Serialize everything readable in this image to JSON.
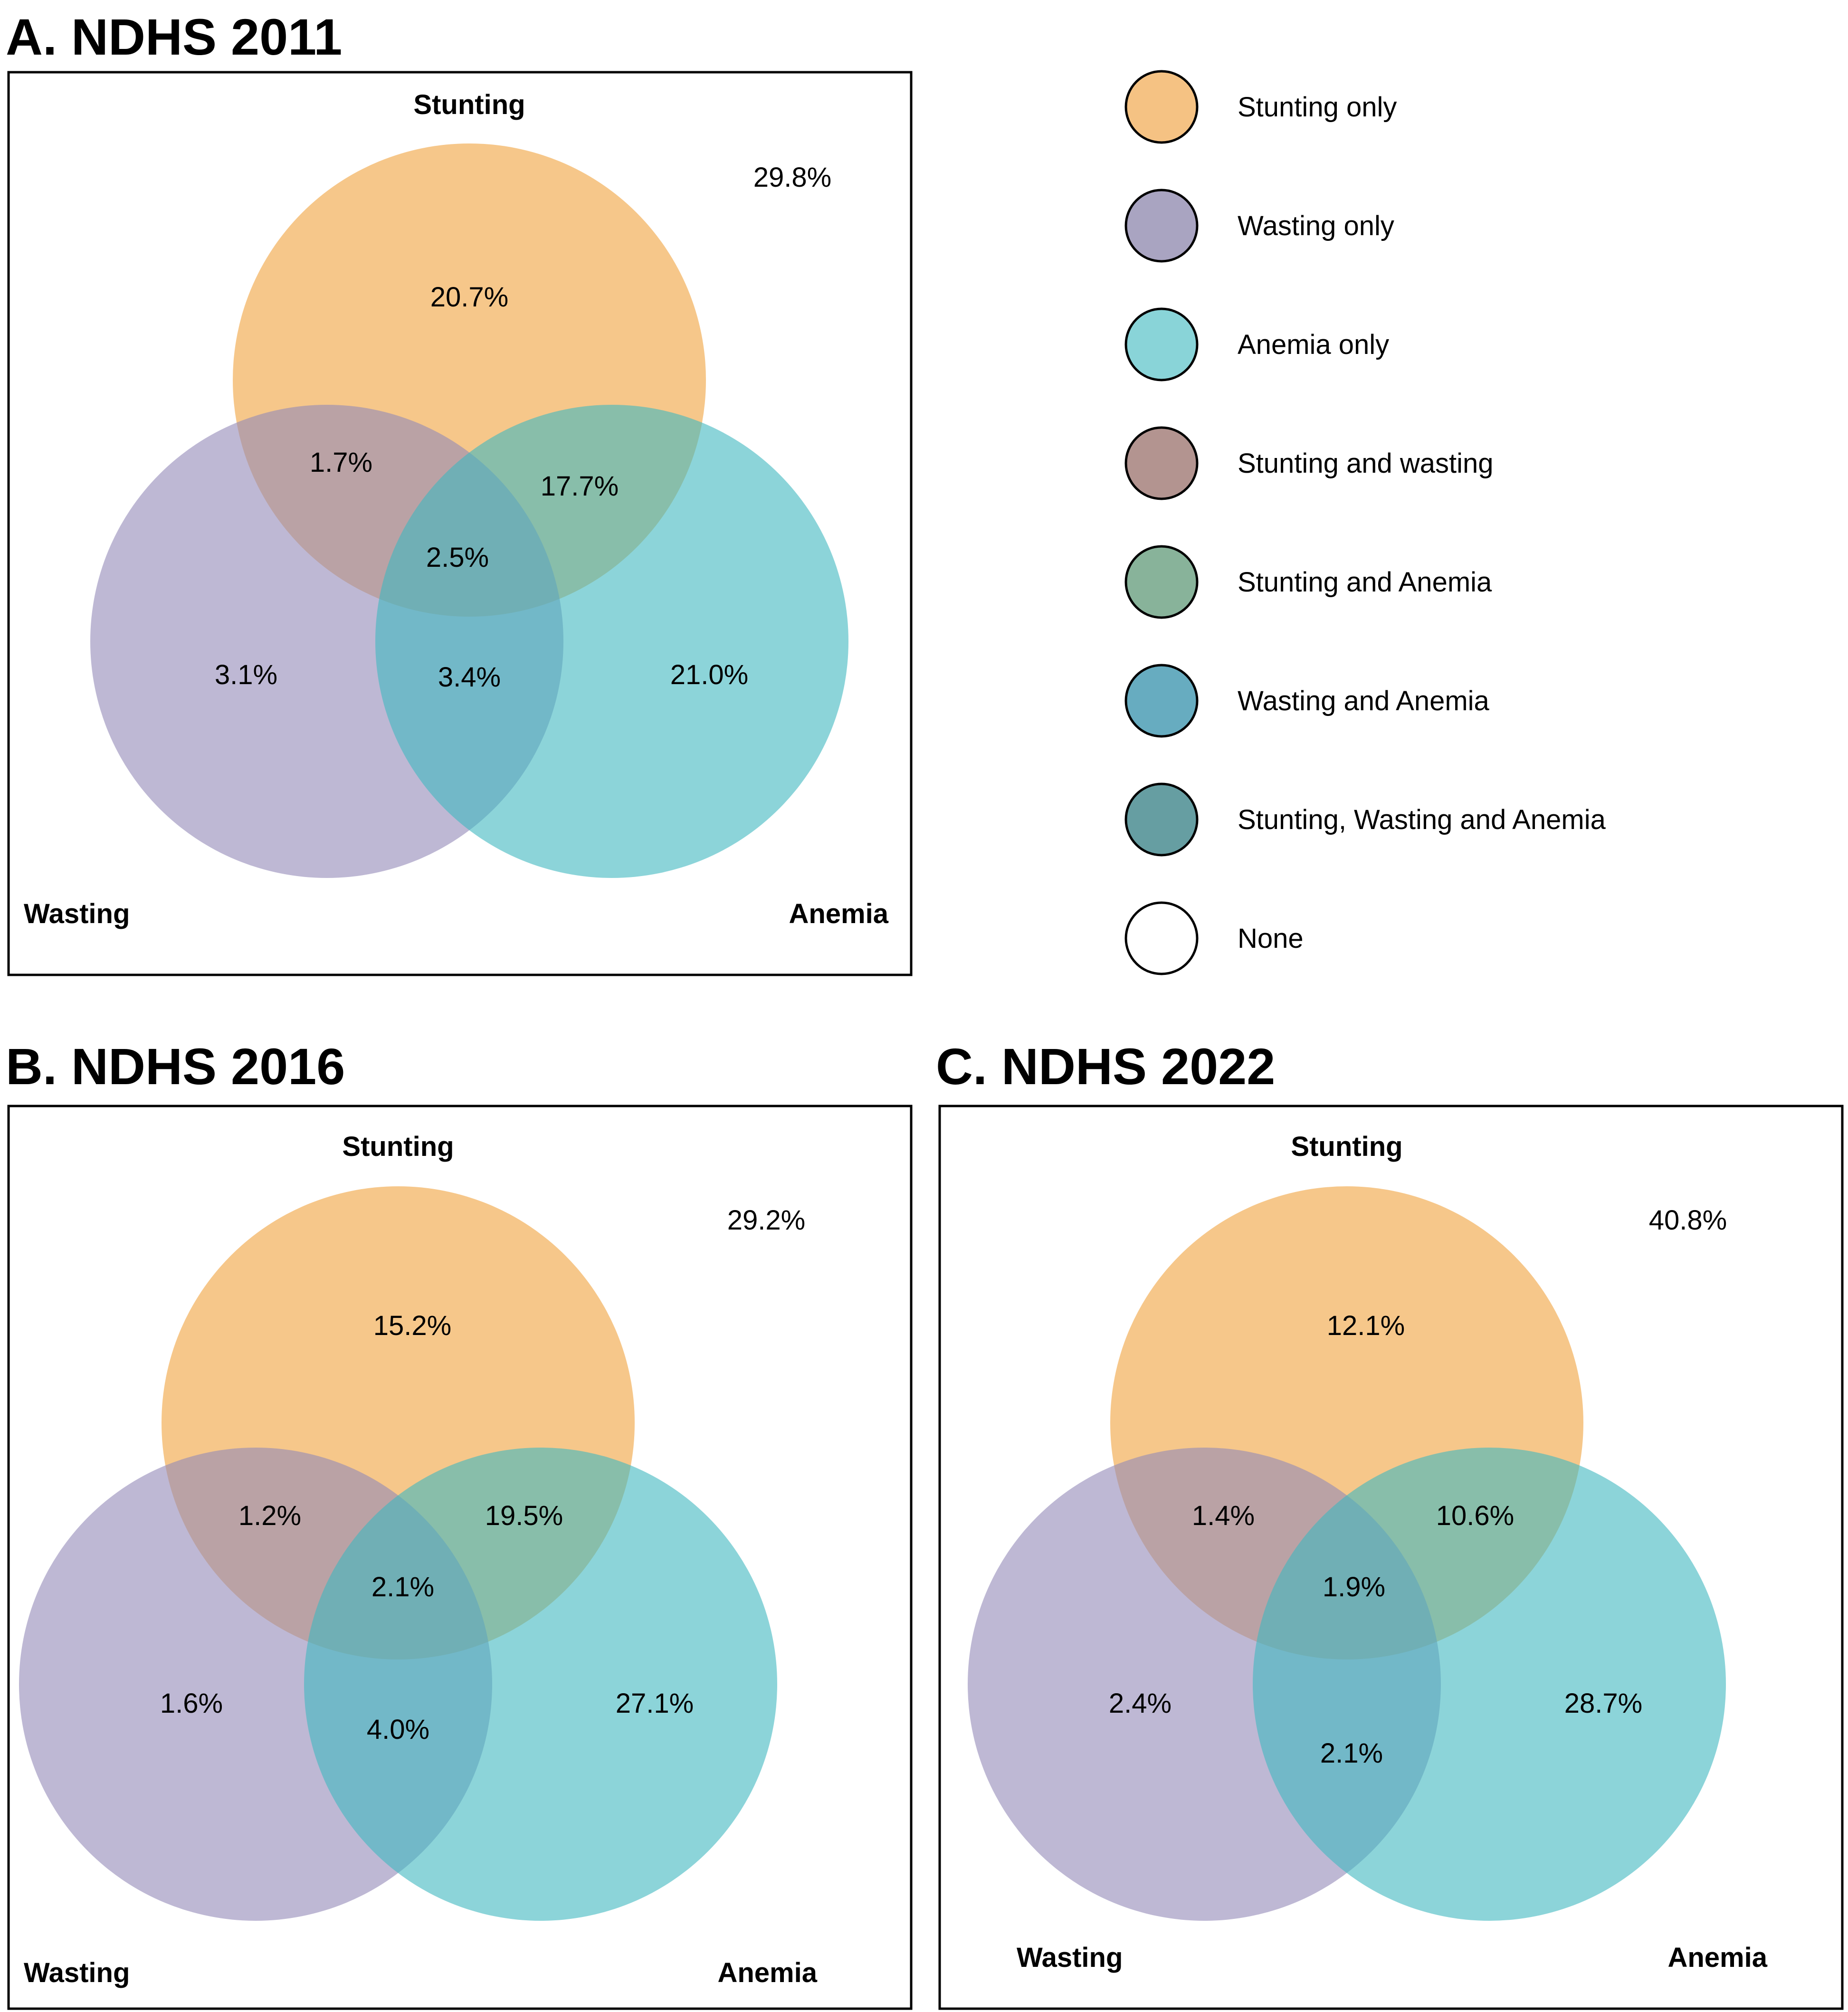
{
  "colors": {
    "stunting": "#f0a23c",
    "wasting": "#9388b8",
    "anemia": "#3fb8bf",
    "stroke": "#000000"
  },
  "legend": [
    {
      "label": "Stunting only",
      "color": "#f5c283"
    },
    {
      "label": "Wasting only",
      "color": "#a9a4c1"
    },
    {
      "label": "Anemia only",
      "color": "#89d4d8"
    },
    {
      "label": "Stunting and wasting",
      "color": "#b39490"
    },
    {
      "label": "Stunting and Anemia",
      "color": "#88b39a"
    },
    {
      "label": "Wasting and Anemia",
      "color": "#67acc0"
    },
    {
      "label": "Stunting, Wasting and Anemia",
      "color": "#669ea2"
    },
    {
      "label": "None",
      "color": "#ffffff"
    }
  ],
  "panels": [
    {
      "title": "A. NDHS 2011",
      "sets": {
        "stunting": "Stunting",
        "wasting": "Wasting",
        "anemia": "Anemia"
      },
      "values": {
        "stunting_only": "20.7%",
        "wasting_only": "3.1%",
        "anemia_only": "21.0%",
        "stunting_wasting": "1.7%",
        "stunting_anemia": "17.7%",
        "wasting_anemia": "3.4%",
        "all_three": "2.5%",
        "none": "29.8%"
      }
    },
    {
      "title": "B. NDHS 2016",
      "sets": {
        "stunting": "Stunting",
        "wasting": "Wasting",
        "anemia": "Anemia"
      },
      "values": {
        "stunting_only": "15.2%",
        "wasting_only": "1.6%",
        "anemia_only": "27.1%",
        "stunting_wasting": "1.2%",
        "stunting_anemia": "19.5%",
        "wasting_anemia": "4.0%",
        "all_three": "2.1%",
        "none": "29.2%"
      }
    },
    {
      "title": "C. NDHS 2022",
      "sets": {
        "stunting": "Stunting",
        "wasting": "Wasting",
        "anemia": "Anemia"
      },
      "values": {
        "stunting_only": "12.1%",
        "wasting_only": "2.4%",
        "anemia_only": "28.7%",
        "stunting_wasting": "1.4%",
        "stunting_anemia": "10.6%",
        "wasting_anemia": "2.1%",
        "all_three": "1.9%",
        "none": "40.8%"
      }
    }
  ]
}
